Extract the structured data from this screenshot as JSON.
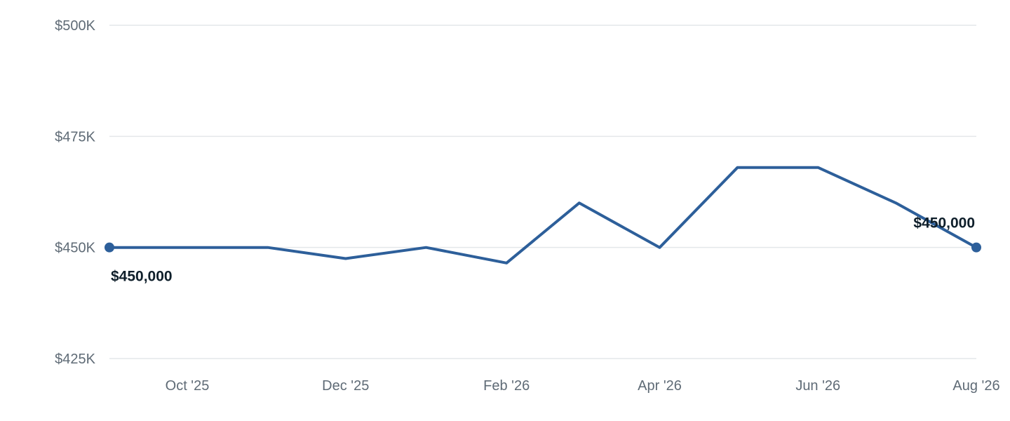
{
  "chart_data": {
    "type": "line",
    "x": [
      "2025-09-01",
      "2025-10-01",
      "2025-11-01",
      "2025-12-01",
      "2026-01-01",
      "2026-02-01",
      "2026-03-01",
      "2026-04-01",
      "2026-05-01",
      "2026-06-01",
      "2026-07-01",
      "2026-08-01"
    ],
    "series": [
      {
        "values": [
          450000,
          450000,
          450000,
          447500,
          450000,
          446500,
          460000,
          450000,
          468000,
          468000,
          460000,
          450000
        ]
      }
    ],
    "ylim": [
      425000,
      500000
    ],
    "y_ticks": [
      {
        "value": 500000,
        "label": "$500K"
      },
      {
        "value": 475000,
        "label": "$475K"
      },
      {
        "value": 450000,
        "label": "$450K"
      },
      {
        "value": 425000,
        "label": "$425K"
      }
    ],
    "x_ticks": [
      {
        "x": "2025-10-01",
        "label": "Oct '25"
      },
      {
        "x": "2025-12-01",
        "label": "Dec '25"
      },
      {
        "x": "2026-02-01",
        "label": "Feb '26"
      },
      {
        "x": "2026-04-01",
        "label": "Apr '26"
      },
      {
        "x": "2026-06-01",
        "label": "Jun '26"
      },
      {
        "x": "2026-08-01",
        "label": "Aug '26"
      }
    ],
    "data_labels": [
      {
        "x": "2025-09-01",
        "label": "$450,000"
      },
      {
        "x": "2026-08-01",
        "label": "$450,000"
      }
    ],
    "title": "",
    "xlabel": "",
    "ylabel": "",
    "grid": true,
    "legend": "none",
    "colors": {
      "line": "#2d5f9a",
      "grid": "#e4e7ea",
      "axis_text": "#5f6b76",
      "label_text": "#0f1f2b"
    }
  }
}
